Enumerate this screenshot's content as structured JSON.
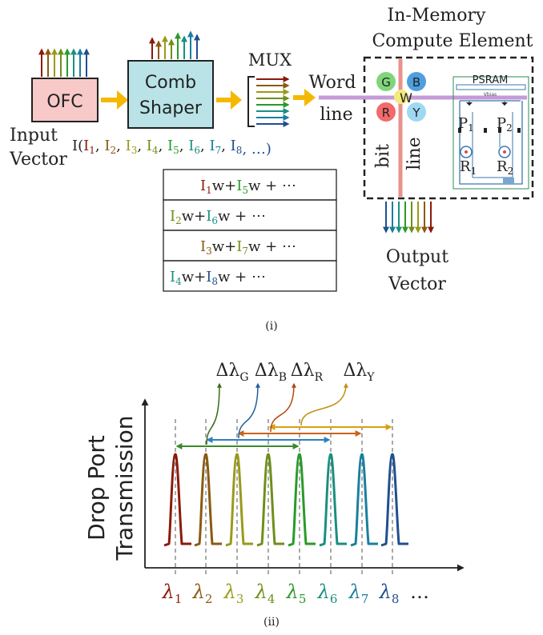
{
  "colors": {
    "c1": "#8b1a0a",
    "c2": "#8a5a12",
    "c3": "#9a9a1a",
    "c4": "#6f8f1a",
    "c5": "#2a9a2a",
    "c6": "#1a8f80",
    "c7": "#1a7fa0",
    "c8": "#1f4f8f",
    "yellow_arrow": "#f5b800",
    "ofc_fill": "#f7c9c8",
    "comb_fill": "#b9e3e6",
    "wordline": "#c49bd6",
    "bitline": "#e8928a"
  },
  "part_i": {
    "caption": "(i)",
    "ofc": "OFC",
    "comb_shaper_line1": "Comb",
    "comb_shaper_line2": "Shaper",
    "mux": "MUX",
    "input_vector_line1": "Input",
    "input_vector_line2": "Vector",
    "input_expression_prefix": "I(",
    "input_terms": [
      "I1",
      "I2",
      "I3",
      "I4",
      "I5",
      "I6",
      "I7",
      "I8"
    ],
    "input_sub": [
      "1",
      "2",
      "3",
      "4",
      "5",
      "6",
      "7",
      "8"
    ],
    "input_tail": ", …)",
    "word_line_line1": "Word",
    "word_line_line2": "line",
    "bit_line_a": "bit",
    "bit_line_b": "line",
    "imce_title_line1": "In-Memory",
    "imce_title_line2": "Compute Element",
    "node_labels": [
      "G",
      "B",
      "R",
      "Y"
    ],
    "weight": "W",
    "psram": "PSRAM",
    "vbias": "Vbias",
    "p1": "P",
    "p1_sub": "1",
    "p2": "P",
    "p2_sub": "2",
    "r1": "R",
    "r1_sub": "1",
    "r2": "R",
    "r2_sub": "2",
    "output_vector_line1": "Output",
    "output_vector_line2": "Vector",
    "table_rows": [
      {
        "a": "I",
        "asub": "1",
        "b": "I",
        "bsub": "5"
      },
      {
        "a": "I",
        "asub": "2",
        "b": "I",
        "bsub": "6"
      },
      {
        "a": "I",
        "asub": "3",
        "b": "I",
        "bsub": "7"
      },
      {
        "a": "I",
        "asub": "4",
        "b": "I",
        "bsub": "8"
      }
    ],
    "table_w": "w",
    "table_plus": "+",
    "table_tail": " + ⋯"
  },
  "part_ii": {
    "caption": "(ii)",
    "ylabel_line1": "Drop Port",
    "ylabel_line2": "Transmission",
    "lambda_symbol": "λ",
    "lambda_subs": [
      "1",
      "2",
      "3",
      "4",
      "5",
      "6",
      "7",
      "8"
    ],
    "ellipsis": "…",
    "delta_labels": [
      {
        "sym": "Δλ",
        "sub": "G"
      },
      {
        "sym": "Δλ",
        "sub": "B"
      },
      {
        "sym": "Δλ",
        "sub": "R"
      },
      {
        "sym": "Δλ",
        "sub": "Y"
      }
    ]
  }
}
